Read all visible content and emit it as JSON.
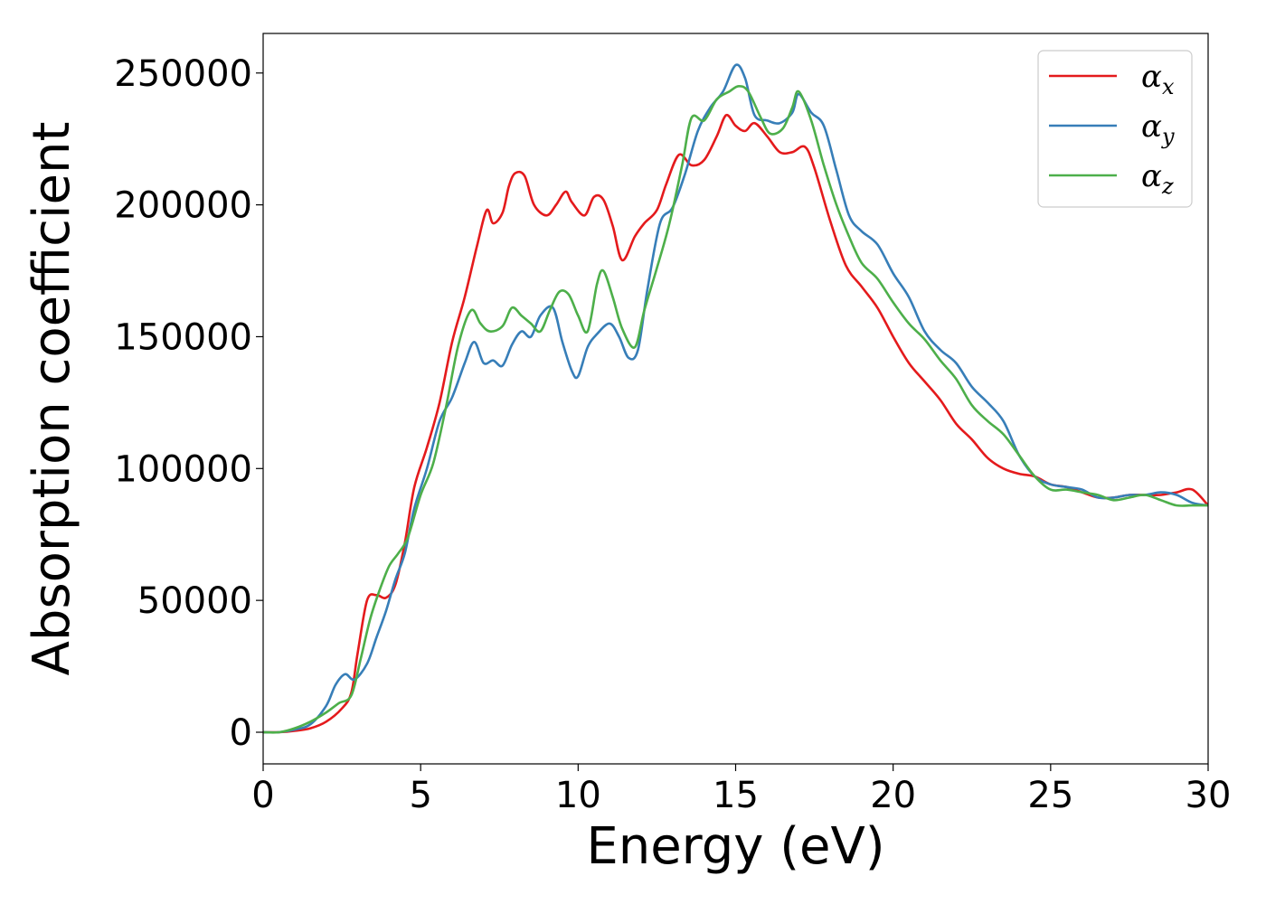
{
  "chart_data": {
    "type": "line",
    "xlabel": "Energy (eV)",
    "ylabel": "Absorption coefficient",
    "xlim": [
      0,
      30
    ],
    "ylim": [
      -12000,
      265000
    ],
    "xticks": [
      0,
      5,
      10,
      15,
      20,
      25,
      30
    ],
    "yticks": [
      0,
      50000,
      100000,
      150000,
      200000,
      250000
    ],
    "grid": false,
    "legend_position": "top-right",
    "series": [
      {
        "name": "α",
        "subscript": "x",
        "color": "#e41a1c",
        "x": [
          0,
          0.5,
          1.0,
          1.5,
          2.0,
          2.5,
          2.8,
          3.0,
          3.3,
          3.6,
          3.9,
          4.2,
          4.5,
          4.8,
          5.2,
          5.6,
          6.0,
          6.4,
          6.8,
          7.1,
          7.3,
          7.6,
          7.8,
          8.0,
          8.3,
          8.6,
          9.0,
          9.3,
          9.6,
          9.8,
          10.2,
          10.5,
          10.8,
          11.1,
          11.4,
          11.8,
          12.1,
          12.5,
          12.8,
          13.2,
          13.6,
          14.0,
          14.4,
          14.7,
          15.0,
          15.3,
          15.6,
          16.0,
          16.4,
          16.8,
          17.2,
          17.5,
          18.0,
          18.5,
          19.0,
          19.5,
          20.0,
          20.5,
          21.0,
          21.5,
          22.0,
          22.5,
          23.0,
          23.5,
          24.0,
          24.5,
          25.0,
          25.5,
          26.0,
          26.5,
          27.0,
          27.5,
          28.0,
          28.5,
          29.0,
          29.5,
          30.0
        ],
        "y": [
          0,
          0,
          500,
          1500,
          4000,
          9000,
          15000,
          30000,
          50000,
          52000,
          51000,
          56000,
          72000,
          93000,
          108000,
          125000,
          148000,
          165000,
          185000,
          198000,
          193000,
          197000,
          207000,
          212000,
          211000,
          200000,
          196000,
          200000,
          205000,
          201000,
          196000,
          203000,
          202000,
          192000,
          179000,
          188000,
          193000,
          198000,
          208000,
          219000,
          215000,
          217000,
          226000,
          234000,
          230000,
          228000,
          231000,
          226000,
          220000,
          220000,
          222000,
          214000,
          194000,
          177000,
          169000,
          161000,
          150000,
          140000,
          133000,
          126000,
          117000,
          111000,
          104000,
          100000,
          98000,
          97000,
          94000,
          93000,
          91000,
          89000,
          89000,
          90000,
          90000,
          90000,
          91000,
          92000,
          86000
        ]
      },
      {
        "name": "α",
        "subscript": "y",
        "color": "#377eb8",
        "x": [
          0,
          0.5,
          1.0,
          1.5,
          2.0,
          2.3,
          2.6,
          2.9,
          3.3,
          3.6,
          3.9,
          4.2,
          4.5,
          4.8,
          5.2,
          5.6,
          6.0,
          6.4,
          6.7,
          7.0,
          7.3,
          7.6,
          7.9,
          8.2,
          8.5,
          8.8,
          9.2,
          9.5,
          9.8,
          10.0,
          10.3,
          10.6,
          11.0,
          11.3,
          11.6,
          11.9,
          12.2,
          12.6,
          13.0,
          13.4,
          13.8,
          14.2,
          14.6,
          15.0,
          15.3,
          15.6,
          16.0,
          16.4,
          16.8,
          17.0,
          17.4,
          17.8,
          18.2,
          18.6,
          19.0,
          19.5,
          20.0,
          20.5,
          21.0,
          21.5,
          22.0,
          22.5,
          23.0,
          23.5,
          24.0,
          24.5,
          25.0,
          25.5,
          26.0,
          26.5,
          27.0,
          27.5,
          28.0,
          28.5,
          29.0,
          29.5,
          30.0
        ],
        "y": [
          0,
          0,
          1000,
          3000,
          10000,
          18000,
          22000,
          20000,
          26000,
          36000,
          46000,
          58000,
          68000,
          85000,
          100000,
          118000,
          127000,
          140000,
          148000,
          140000,
          141000,
          139000,
          147000,
          152000,
          150000,
          158000,
          161000,
          148000,
          137000,
          135000,
          146000,
          151000,
          155000,
          150000,
          142000,
          145000,
          168000,
          193000,
          199000,
          212000,
          228000,
          237000,
          243000,
          253000,
          248000,
          234000,
          232000,
          231000,
          235000,
          242000,
          235000,
          230000,
          213000,
          196000,
          190000,
          185000,
          174000,
          165000,
          152000,
          145000,
          140000,
          131000,
          125000,
          118000,
          105000,
          97000,
          94000,
          93000,
          92000,
          89000,
          89000,
          90000,
          90000,
          91000,
          90000,
          87000,
          86000
        ]
      },
      {
        "name": "α",
        "subscript": "z",
        "color": "#4daf4a",
        "x": [
          0,
          0.5,
          1.0,
          1.5,
          2.0,
          2.4,
          2.8,
          3.1,
          3.4,
          3.7,
          4.0,
          4.3,
          4.6,
          5.0,
          5.4,
          5.8,
          6.2,
          6.6,
          6.9,
          7.2,
          7.6,
          7.9,
          8.2,
          8.5,
          8.8,
          9.1,
          9.4,
          9.7,
          10.0,
          10.3,
          10.6,
          10.8,
          11.1,
          11.4,
          11.8,
          12.1,
          12.5,
          12.9,
          13.3,
          13.6,
          14.0,
          14.4,
          14.8,
          15.1,
          15.4,
          15.8,
          16.1,
          16.5,
          16.8,
          17.0,
          17.4,
          17.8,
          18.2,
          18.6,
          19.0,
          19.5,
          20.0,
          20.5,
          21.0,
          21.5,
          22.0,
          22.5,
          23.0,
          23.5,
          24.0,
          24.5,
          25.0,
          25.5,
          26.0,
          26.5,
          27.0,
          27.5,
          28.0,
          28.5,
          29.0,
          29.5,
          30.0
        ],
        "y": [
          0,
          0,
          1500,
          4000,
          7500,
          11000,
          14000,
          28000,
          43000,
          54000,
          63000,
          68000,
          74000,
          90000,
          102000,
          123000,
          147000,
          160000,
          155000,
          152000,
          154000,
          161000,
          158000,
          155000,
          152000,
          160000,
          167000,
          166000,
          158000,
          152000,
          170000,
          175000,
          165000,
          153000,
          146000,
          160000,
          176000,
          193000,
          215000,
          233000,
          232000,
          240000,
          243000,
          245000,
          243000,
          233000,
          227000,
          229000,
          237000,
          243000,
          232000,
          215000,
          200000,
          188000,
          178000,
          172000,
          163000,
          155000,
          149000,
          141000,
          134000,
          124000,
          118000,
          113000,
          105000,
          97000,
          92000,
          92000,
          91000,
          90000,
          88000,
          89000,
          90000,
          88000,
          86000,
          86000,
          86000
        ]
      }
    ]
  }
}
